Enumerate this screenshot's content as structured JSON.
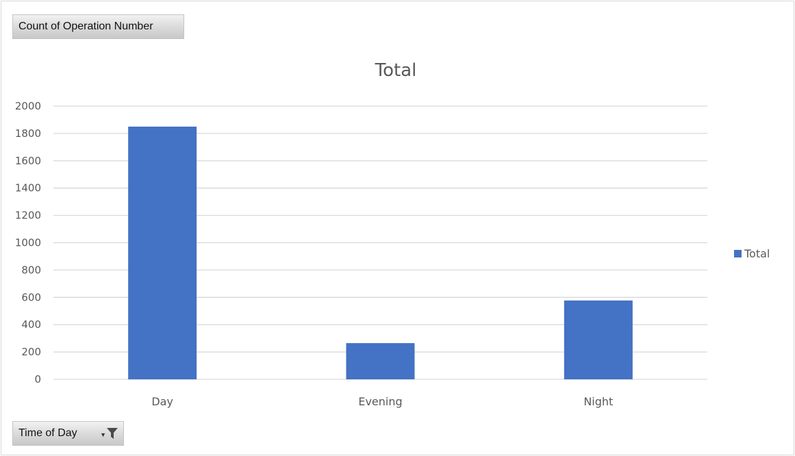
{
  "pivot": {
    "values_field_label": "Count of Operation Number",
    "axis_field_label": "Time of Day"
  },
  "colors": {
    "bar": "#4472c4",
    "gridline": "#d9d9d9",
    "text": "#595959"
  },
  "icons": {
    "axis_dropdown": "chevron-down-icon",
    "axis_filter": "funnel-icon"
  },
  "chart_data": {
    "type": "bar",
    "title": "Total",
    "categories": [
      "Day",
      "Evening",
      "Night"
    ],
    "series": [
      {
        "name": "Total",
        "values": [
          1850,
          265,
          577
        ]
      }
    ],
    "xlabel": "",
    "ylabel": "",
    "ylim": [
      0,
      2000
    ],
    "yticks": [
      0,
      200,
      400,
      600,
      800,
      1000,
      1200,
      1400,
      1600,
      1800,
      2000
    ],
    "grid": true,
    "legend": "right"
  }
}
